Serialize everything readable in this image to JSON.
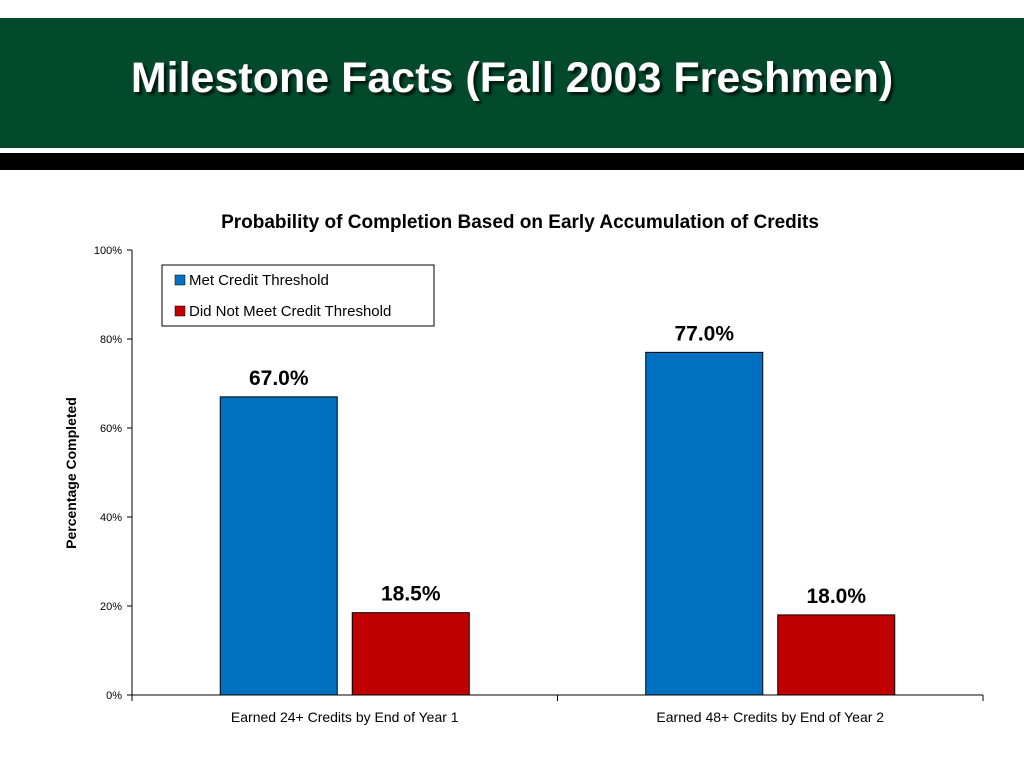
{
  "slide": {
    "title": "Milestone Facts (Fall 2003 Freshmen)",
    "header_color": "#034a2d",
    "rule_color": "#000000"
  },
  "chart_data": {
    "type": "bar",
    "title": "Probability of Completion Based on Early Accumulation of Credits",
    "xlabel": "",
    "ylabel": "Percentage Completed",
    "ylim": [
      0,
      100
    ],
    "yticks": [
      "0%",
      "20%",
      "40%",
      "60%",
      "80%",
      "100%"
    ],
    "categories": [
      "Earned 24+ Credits by End of Year 1",
      "Earned 48+ Credits by End of Year 2"
    ],
    "series": [
      {
        "name": "Met Credit Threshold",
        "values": [
          67.0,
          77.0
        ],
        "labels": [
          "67.0%",
          "77.0%"
        ],
        "color": "#0070c0"
      },
      {
        "name": "Did Not Meet Credit Threshold",
        "values": [
          18.5,
          18.0
        ],
        "labels": [
          "18.5%",
          "18.0%"
        ],
        "color": "#c00000"
      }
    ],
    "legend_position": "top-left",
    "grid": false
  }
}
